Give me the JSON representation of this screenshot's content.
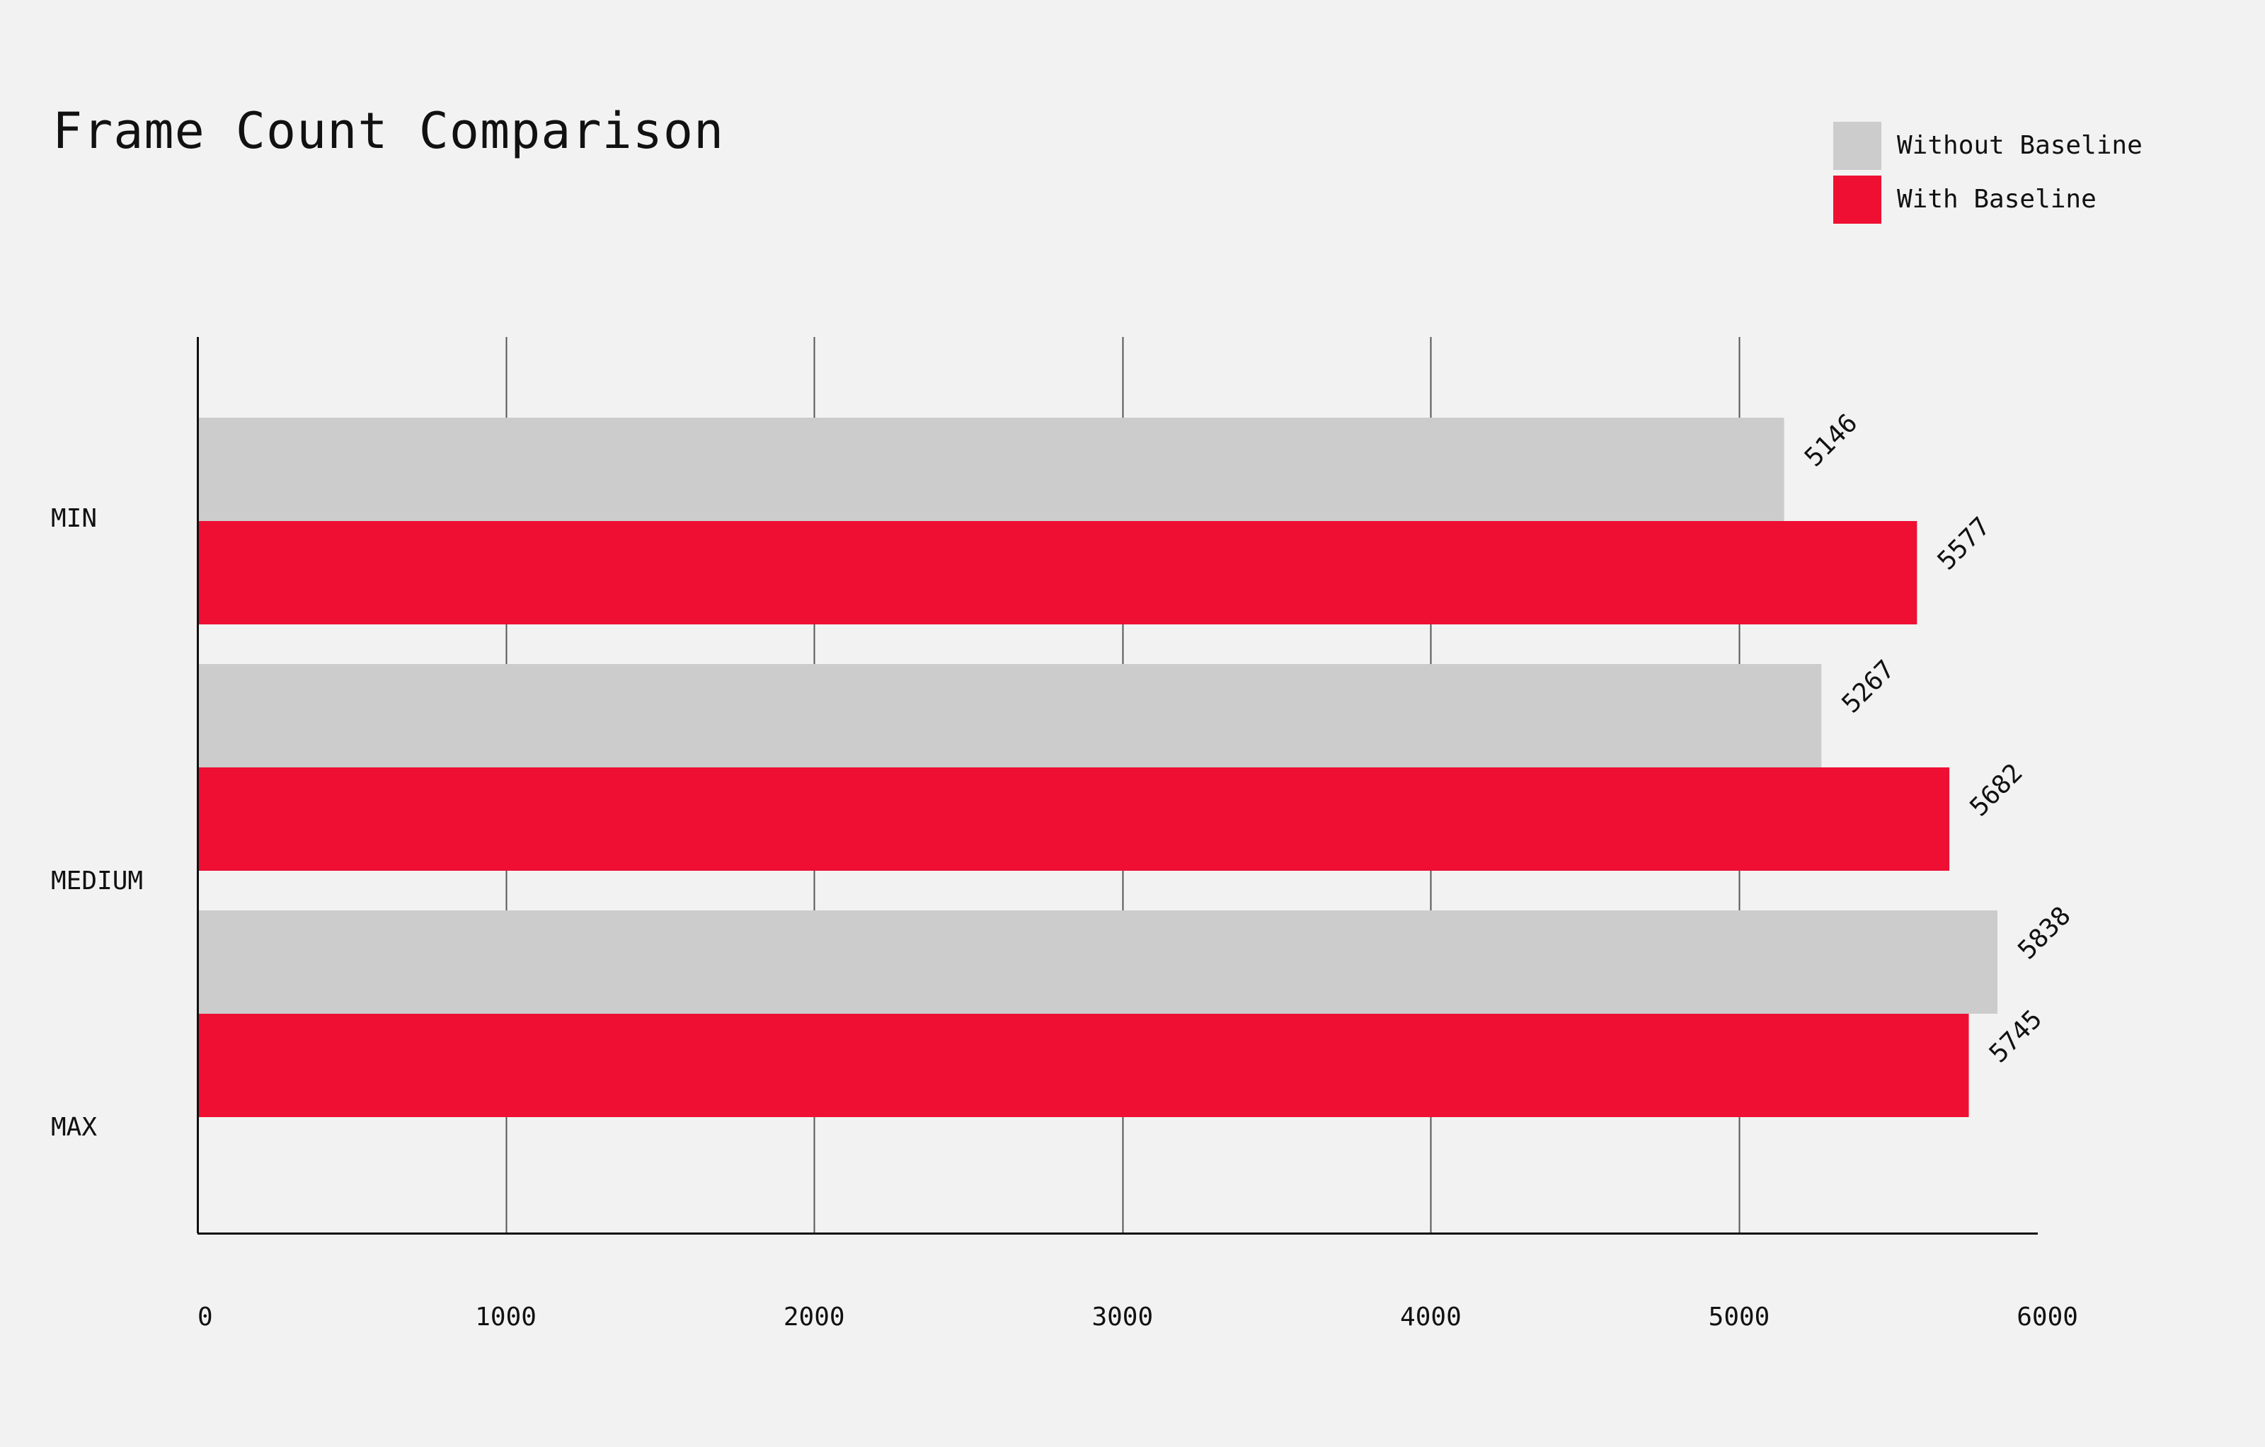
{
  "chart_data": {
    "type": "bar",
    "orientation": "horizontal",
    "title": "Frame Count Comparison",
    "categories": [
      "MIN",
      "MEDIUM",
      "MAX"
    ],
    "series": [
      {
        "name": "Without Baseline",
        "color": "#cccccc",
        "values": [
          5146,
          5267,
          5838
        ]
      },
      {
        "name": "With Baseline",
        "color": "#ee0f33",
        "values": [
          5577,
          5682,
          5745
        ]
      }
    ],
    "xlim": [
      0,
      6000
    ],
    "xticks": [
      "0",
      "1000",
      "2000",
      "3000",
      "4000",
      "5000",
      "6000"
    ],
    "grid": true,
    "legend": "top-right"
  }
}
